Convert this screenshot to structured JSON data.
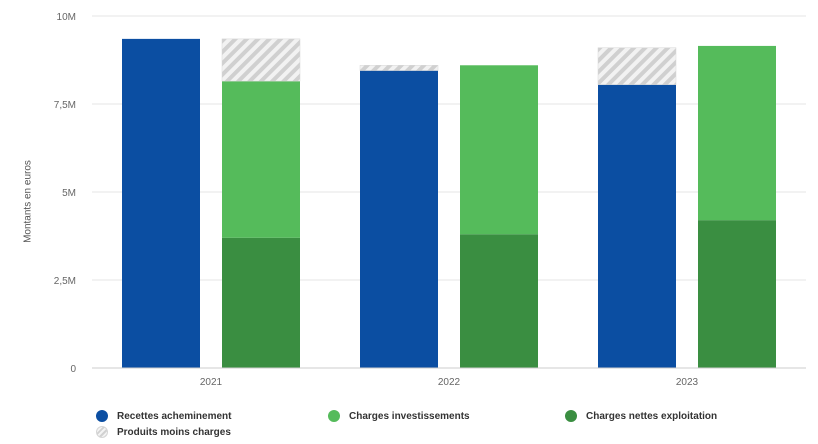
{
  "chart_data": {
    "type": "bar",
    "title": "",
    "xlabel": "",
    "ylabel": "Montants en euros",
    "categories": [
      "2021",
      "2022",
      "2023"
    ],
    "ylim": [
      0,
      10000000
    ],
    "y_ticks": [
      {
        "value": 0,
        "label": "0"
      },
      {
        "value": 2500000,
        "label": "2,5M"
      },
      {
        "value": 5000000,
        "label": "5M"
      },
      {
        "value": 7500000,
        "label": "7,5M"
      },
      {
        "value": 10000000,
        "label": "10M"
      }
    ],
    "grid": true,
    "legend_position": "bottom",
    "series": [
      {
        "name": "Recettes acheminement",
        "stack": "recettes",
        "color": "#0b4ea2",
        "values": [
          9350000,
          8450000,
          8050000
        ]
      },
      {
        "name": "Produits moins charges",
        "stack": "recettes",
        "pattern": "hatched",
        "color": "#cfcfcf",
        "values": [
          0,
          150000,
          1050000
        ]
      },
      {
        "name": "Charges nettes exploitation",
        "stack": "charges",
        "color": "#3a8e41",
        "values": [
          3700000,
          3800000,
          4200000
        ]
      },
      {
        "name": "Charges investissements",
        "stack": "charges",
        "color": "#55bb5b",
        "values": [
          4450000,
          4800000,
          4950000
        ]
      },
      {
        "name": "Produits moins charges",
        "stack": "charges",
        "pattern": "hatched",
        "color": "#cfcfcf",
        "values": [
          1200000,
          0,
          0
        ]
      }
    ],
    "legend": [
      {
        "label": "Recettes acheminement",
        "color": "#0b4ea2",
        "pattern": "solid"
      },
      {
        "label": "Charges investissements",
        "color": "#55bb5b",
        "pattern": "solid"
      },
      {
        "label": "Charges nettes exploitation",
        "color": "#3a8e41",
        "pattern": "solid"
      },
      {
        "label": "Produits moins charges",
        "color": "#cfcfcf",
        "pattern": "hatched"
      }
    ]
  }
}
